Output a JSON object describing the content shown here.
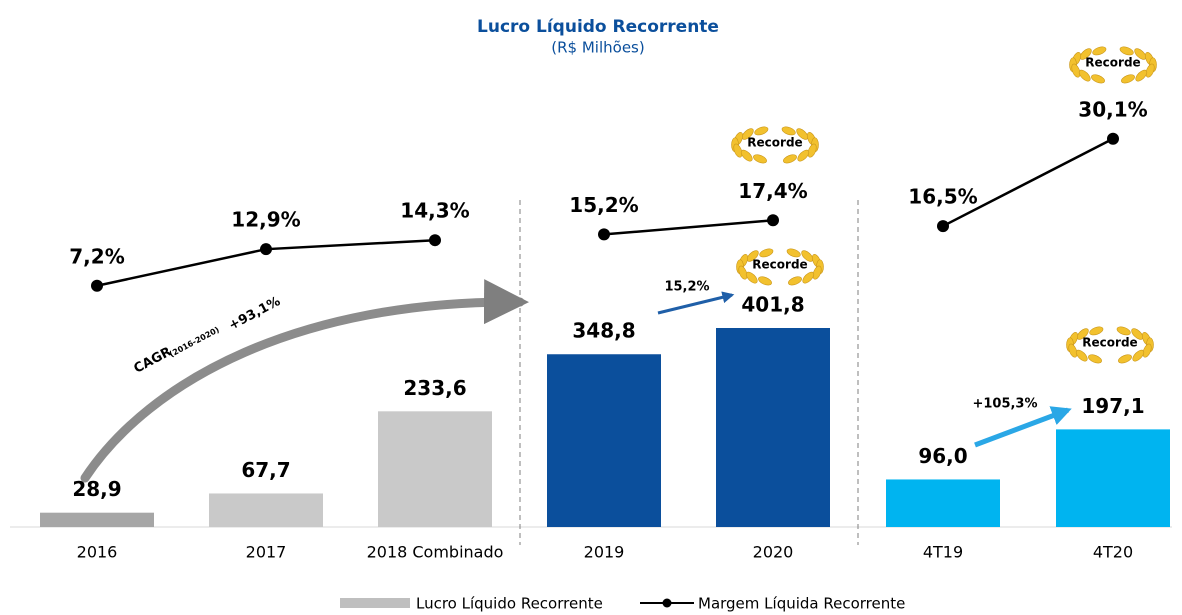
{
  "chart_data": {
    "type": "bar",
    "title": "Lucro Líquido Recorrente",
    "subtitle": "(R$ Milhões)",
    "categories": [
      "2016",
      "2017",
      "2018 Combinado",
      "2019",
      "2020",
      "4T19",
      "4T20"
    ],
    "series": [
      {
        "name": "Lucro Líquido Recorrente",
        "type": "bar",
        "color": "#bfbfbf",
        "colors": [
          "#a6a6a6",
          "#c9c9c9",
          "#c9c9c9",
          "#0b4f9c",
          "#0b4f9c",
          "#00b4f0",
          "#00b4f0"
        ],
        "values": [
          28.9,
          67.7,
          233.6,
          348.8,
          401.8,
          96.0,
          197.1
        ],
        "value_labels": [
          "28,9",
          "67,7",
          "233,6",
          "348,8",
          "401,8",
          "96,0",
          "197,1"
        ]
      },
      {
        "name": "Margem Líquida Recorrente",
        "type": "line",
        "color": "#000000",
        "values": [
          7.2,
          12.9,
          14.3,
          15.2,
          17.4,
          16.5,
          30.1
        ],
        "value_labels": [
          "7,2%",
          "12,9%",
          "14,3%",
          "15,2%",
          "17,4%",
          "16,5%",
          "30,1%"
        ]
      }
    ],
    "annotations": [
      "Recorde",
      "Recorde",
      "Recorde",
      "Recorde",
      "CAGR",
      "(2016-2020)",
      "+93,1%",
      "15,2%",
      "+105,3%"
    ]
  }
}
